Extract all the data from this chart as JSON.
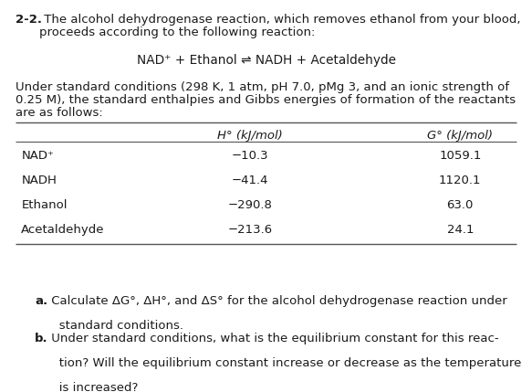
{
  "title_bold": "2-2.",
  "title_line1": " The alcohol dehydrogenase reaction, which removes ethanol from your blood,",
  "title_line2": "    proceeds according to the following reaction:",
  "reaction": "NAD⁺ + Ethanol ⇌ NADH + Acetaldehyde",
  "para_line1": "Under standard conditions (298 K, 1 atm, pH 7.0, pMg 3, and an ionic strength of",
  "para_line2": "0.25 M), the standard enthalpies and Gibbs energies of formation of the reactants",
  "para_line3": "are as follows:",
  "header_h": "H° (kJ/mol)",
  "header_g": "G° (kJ/mol)",
  "table_rows": [
    [
      "NAD⁺",
      "−10.3",
      "1059.1"
    ],
    [
      "NADH",
      "−41.4",
      "1120.1"
    ],
    [
      "Ethanol",
      "−290.8",
      "63.0"
    ],
    [
      "Acetaldehyde",
      "−213.6",
      "24.1"
    ]
  ],
  "qa_bold": "a.",
  "qa_line1": " Calculate ΔG°, ΔH°, and ΔS° for the alcohol dehydrogenase reaction under",
  "qa_line2": "   standard conditions.",
  "qb_bold": "b.",
  "qb_line1": " Under standard conditions, what is the equilibrium constant for this reac-",
  "qb_line2": "   tion? Will the equilibrium constant increase or decrease as the temperature",
  "qb_line3": "   is increased?",
  "bg_color": "#ffffff",
  "text_color": "#1a1a1a",
  "line_color": "#555555",
  "font_size": 9.5,
  "font_family": "DejaVu Sans"
}
